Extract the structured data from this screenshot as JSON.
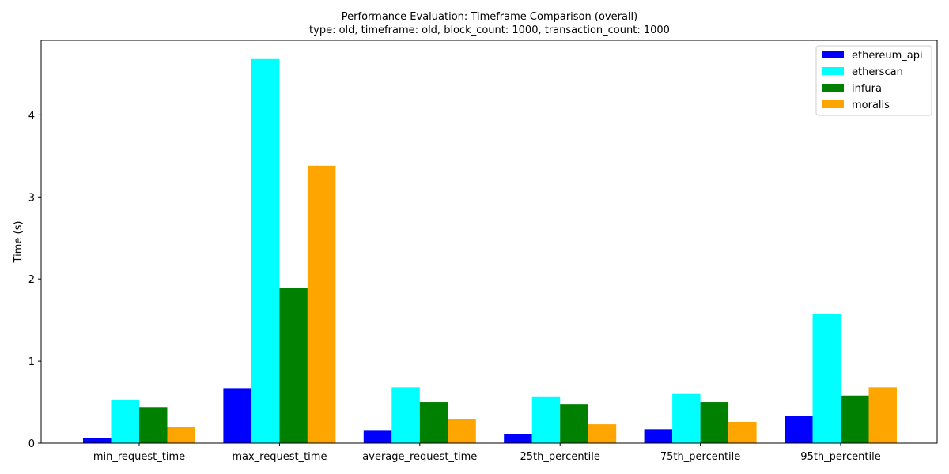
{
  "chart_data": {
    "type": "bar",
    "title": "Performance Evaluation: Timeframe Comparison (overall)",
    "subtitle": "type: old, timeframe: old, block_count: 1000, transaction_count: 1000",
    "xlabel": "",
    "ylabel": "Time (s)",
    "ylim": [
      0,
      4.9
    ],
    "yticks": [
      0,
      1,
      2,
      3,
      4
    ],
    "grid": false,
    "legend_position": "top-right",
    "categories": [
      "min_request_time",
      "max_request_time",
      "average_request_time",
      "25th_percentile",
      "75th_percentile",
      "95th_percentile"
    ],
    "series": [
      {
        "name": "ethereum_api",
        "color": "#0000ff",
        "values": [
          0.06,
          0.67,
          0.16,
          0.11,
          0.17,
          0.33
        ]
      },
      {
        "name": "etherscan",
        "color": "#00ffff",
        "values": [
          0.53,
          4.68,
          0.68,
          0.57,
          0.6,
          1.57
        ]
      },
      {
        "name": "infura",
        "color": "#008000",
        "values": [
          0.44,
          1.89,
          0.5,
          0.47,
          0.5,
          0.58
        ]
      },
      {
        "name": "moralis",
        "color": "#ffa500",
        "values": [
          0.2,
          3.38,
          0.29,
          0.23,
          0.26,
          0.68
        ]
      }
    ]
  }
}
